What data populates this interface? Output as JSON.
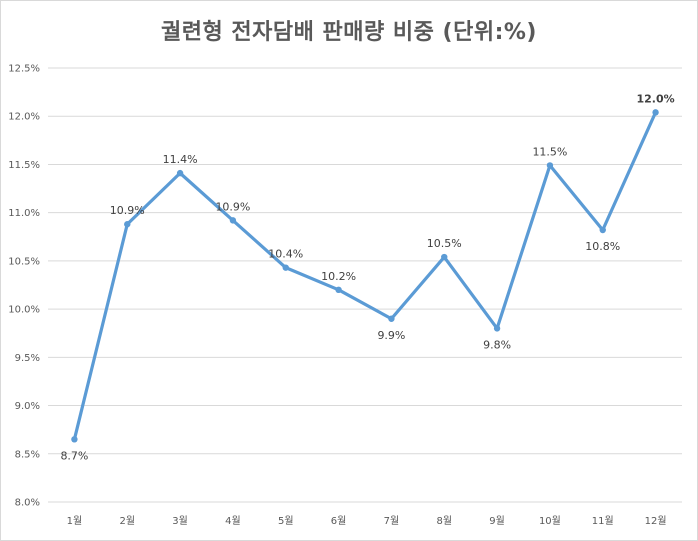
{
  "chart_data": {
    "type": "line",
    "title": "궐련형 전자담배 판매량 비중 (단위:%)",
    "xlabel": "",
    "ylabel": "",
    "categories": [
      "1월",
      "2월",
      "3월",
      "4월",
      "5월",
      "6월",
      "7월",
      "8월",
      "9월",
      "10월",
      "11월",
      "12월"
    ],
    "series": [
      {
        "values": [
          8.65,
          10.88,
          11.41,
          10.92,
          10.43,
          10.2,
          9.9,
          10.54,
          9.8,
          11.49,
          10.82,
          12.04
        ],
        "labels": [
          "8.7%",
          "10.9%",
          "11.4%",
          "10.9%",
          "10.4%",
          "10.2%",
          "9.9%",
          "10.5%",
          "9.8%",
          "11.5%",
          "10.8%",
          "12.0%"
        ],
        "color": "#5b9bd5"
      }
    ],
    "ylim": [
      8.0,
      12.5
    ],
    "yticks": [
      "8.0%",
      "8.5%",
      "9.0%",
      "9.5%",
      "10.0%",
      "10.5%",
      "11.0%",
      "11.5%",
      "12.0%",
      "12.5%"
    ],
    "grid": true,
    "gridColor": "#d9d9d9",
    "legend": "none"
  }
}
